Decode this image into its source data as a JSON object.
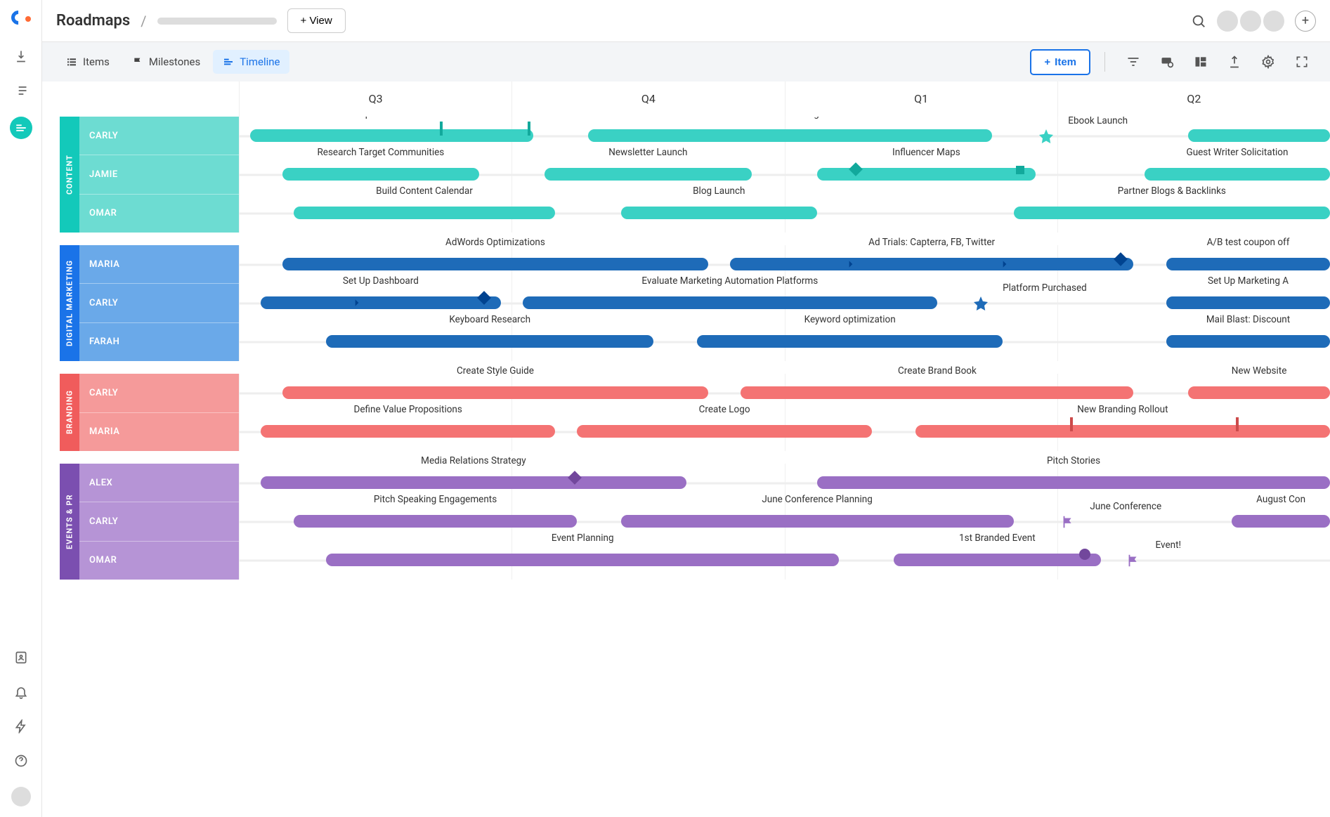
{
  "header": {
    "title": "Roadmaps",
    "view_btn": "+ View"
  },
  "toolbar": {
    "tabs": [
      {
        "id": "items",
        "label": "Items",
        "active": false
      },
      {
        "id": "milestones",
        "label": "Milestones",
        "active": false
      },
      {
        "id": "timeline",
        "label": "Timeline",
        "active": true
      }
    ],
    "item_btn": "Item"
  },
  "timeline": {
    "quarters": [
      "Q3",
      "Q4",
      "Q1",
      "Q2"
    ],
    "track_width_pct": 100,
    "groups": [
      {
        "name": "CONTENT",
        "tab_color": "#13c9ba",
        "person_color": "#6ddcd2",
        "bar_color": "#3ad1c4",
        "people": [
          {
            "name": "CARLY",
            "bars": [
              {
                "label": "Set Up Social Channels",
                "start": 1,
                "end": 27,
                "ticks": [
                  {
                    "pct": 68,
                    "shape": "tick"
                  },
                  {
                    "pct": 99,
                    "shape": "tick"
                  }
                ]
              },
              {
                "label": "Ebook Writing",
                "start": 32,
                "end": 69
              }
            ],
            "milestones": [
              {
                "label": "Ebook Launch",
                "pct": 74,
                "shape": "star",
                "color": "#3ad1c4",
                "label_side": "right"
              }
            ],
            "tail_bar": {
              "start": 87,
              "end": 100
            }
          },
          {
            "name": "JAMIE",
            "bars": [
              {
                "label": "Research Target Communities",
                "start": 4,
                "end": 22
              },
              {
                "label": "Newsletter Launch",
                "start": 28,
                "end": 47
              },
              {
                "label": "Influencer Maps",
                "start": 53,
                "end": 73,
                "ticks": [
                  {
                    "pct": 20,
                    "shape": "diamond"
                  },
                  {
                    "pct": 95,
                    "shape": "square"
                  }
                ]
              },
              {
                "label": "Guest Writer Solicitation",
                "start": 83,
                "end": 100
              }
            ]
          },
          {
            "name": "OMAR",
            "bars": [
              {
                "label": "Build Content Calendar",
                "start": 5,
                "end": 29
              },
              {
                "label": "Blog Launch",
                "start": 35,
                "end": 53
              },
              {
                "label": "Partner Blogs & Backlinks",
                "start": 71,
                "end": 100
              }
            ]
          }
        ]
      },
      {
        "name": "DIGITAL MARKETING",
        "tab_color": "#1a73e8",
        "person_color": "#6aa9e9",
        "bar_color": "#1e6bb8",
        "people": [
          {
            "name": "MARIA",
            "bars": [
              {
                "label": "AdWords Optimizations",
                "start": 4,
                "end": 43
              },
              {
                "label": "Ad Trials: Capterra, FB, Twitter",
                "start": 45,
                "end": 82,
                "ticks": [
                  {
                    "pct": 30,
                    "shape": "chevron"
                  },
                  {
                    "pct": 68,
                    "shape": "chevron"
                  },
                  {
                    "pct": 98,
                    "shape": "diamond"
                  }
                ]
              },
              {
                "label": "A/B test coupon off",
                "start": 85,
                "end": 100
              }
            ]
          },
          {
            "name": "CARLY",
            "bars": [
              {
                "label": "Set Up Dashboard",
                "start": 2,
                "end": 24,
                "ticks": [
                  {
                    "pct": 40,
                    "shape": "chevron"
                  },
                  {
                    "pct": 95,
                    "shape": "diamond"
                  }
                ]
              },
              {
                "label": "Evaluate Marketing Automation Platforms",
                "start": 26,
                "end": 64
              },
              {
                "label": "Set Up Marketing A",
                "start": 85,
                "end": 100
              }
            ],
            "milestones": [
              {
                "label": "Platform Purchased",
                "pct": 68,
                "shape": "star",
                "color": "#1e6bb8",
                "label_side": "right"
              }
            ]
          },
          {
            "name": "FARAH",
            "bars": [
              {
                "label": "Keyboard Research",
                "start": 8,
                "end": 38
              },
              {
                "label": "Keyword optimization",
                "start": 42,
                "end": 70
              },
              {
                "label": "Mail Blast: Discount",
                "start": 85,
                "end": 100
              }
            ]
          }
        ]
      },
      {
        "name": "BRANDING",
        "tab_color": "#f05c5c",
        "person_color": "#f59a9a",
        "bar_color": "#f47373",
        "people": [
          {
            "name": "CARLY",
            "bars": [
              {
                "label": "Create Style Guide",
                "start": 4,
                "end": 43
              },
              {
                "label": "Create Brand Book",
                "start": 46,
                "end": 82
              },
              {
                "label": "New Website",
                "start": 87,
                "end": 100
              }
            ]
          },
          {
            "name": "MARIA",
            "bars": [
              {
                "label": "Define Value Propositions",
                "start": 2,
                "end": 29
              },
              {
                "label": "Create Logo",
                "start": 31,
                "end": 58
              },
              {
                "label": "New Branding Rollout",
                "start": 62,
                "end": 100,
                "ticks": [
                  {
                    "pct": 38,
                    "shape": "tick"
                  },
                  {
                    "pct": 78,
                    "shape": "tick"
                  }
                ]
              }
            ]
          }
        ]
      },
      {
        "name": "EVENTS & PR",
        "tab_color": "#7b4fb0",
        "person_color": "#b694d6",
        "bar_color": "#9a6fc4",
        "people": [
          {
            "name": "ALEX",
            "bars": [
              {
                "label": "Media Relations Strategy",
                "start": 2,
                "end": 41,
                "ticks": [
                  {
                    "pct": 75,
                    "shape": "diamond"
                  }
                ]
              },
              {
                "label": "Pitch Stories",
                "start": 53,
                "end": 100
              }
            ]
          },
          {
            "name": "CARLY",
            "bars": [
              {
                "label": "Pitch Speaking Engagements",
                "start": 5,
                "end": 31
              },
              {
                "label": "June Conference Planning",
                "start": 35,
                "end": 71
              },
              {
                "label": "August Con",
                "start": 91,
                "end": 100
              }
            ],
            "milestones": [
              {
                "label": "June Conference",
                "pct": 76,
                "shape": "flag",
                "color": "#9a6fc4",
                "label_side": "right"
              }
            ]
          },
          {
            "name": "OMAR",
            "bars": [
              {
                "label": "Event Planning",
                "start": 8,
                "end": 55
              },
              {
                "label": "1st Branded Event",
                "start": 60,
                "end": 79,
                "ticks": [
                  {
                    "pct": 95,
                    "shape": "circle"
                  }
                ]
              }
            ],
            "milestones": [
              {
                "label": "Event!",
                "pct": 82,
                "shape": "flag",
                "color": "#9a6fc4",
                "label_side": "right"
              }
            ]
          }
        ]
      }
    ]
  }
}
